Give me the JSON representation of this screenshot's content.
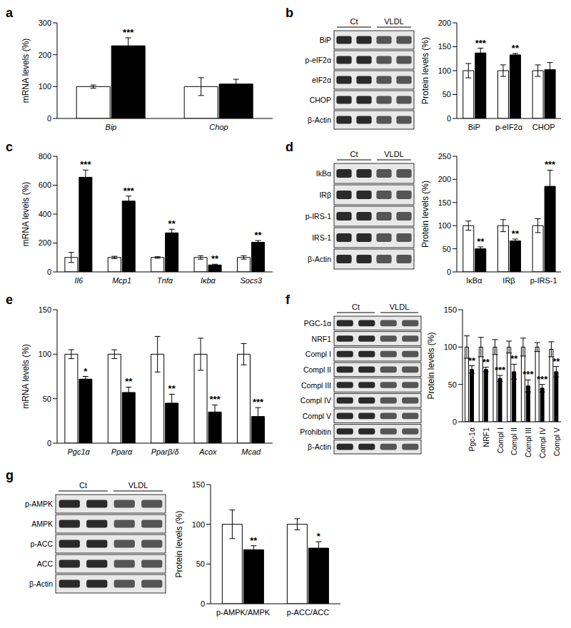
{
  "chart_data": [
    {
      "type": "bar",
      "title": "a",
      "y_label": "mRNA levels (%)",
      "categories": [
        "Bip",
        "Chop"
      ],
      "ylim": [
        0,
        300
      ],
      "yticks": [
        0,
        100,
        200,
        300
      ],
      "series": [
        {
          "color": "#ffffff",
          "values": [
            100,
            100
          ],
          "errors": [
            5,
            28
          ],
          "annotations": [
            null,
            null
          ]
        },
        {
          "color": "#000000",
          "values": [
            228,
            108
          ],
          "errors": [
            25,
            15
          ],
          "annotations": [
            "***",
            null
          ]
        }
      ]
    },
    {
      "type": "bar",
      "title": "b",
      "y_label": "Protein levels (%)",
      "categories": [
        "BiP",
        "p-eIF2α",
        "CHOP"
      ],
      "ylim": [
        0,
        200
      ],
      "yticks": [
        0,
        50,
        100,
        150,
        200
      ],
      "series": [
        {
          "color": "#ffffff",
          "values": [
            100,
            100,
            100
          ],
          "errors": [
            15,
            12,
            12
          ],
          "annotations": [
            null,
            null,
            null
          ]
        },
        {
          "color": "#000000",
          "values": [
            137,
            133,
            102
          ],
          "errors": [
            10,
            3,
            15
          ],
          "annotations": [
            "***",
            "**",
            null
          ]
        }
      ]
    },
    {
      "type": "bar",
      "title": "c",
      "y_label": "mRNA levels (%)",
      "categories": [
        "Il6",
        "Mcp1",
        "Tnfα",
        "Iκbα",
        "Socs3"
      ],
      "ylim": [
        0,
        800
      ],
      "yticks": [
        0,
        200,
        400,
        600,
        800
      ],
      "series": [
        {
          "color": "#ffffff",
          "values": [
            100,
            100,
            100,
            100,
            100
          ],
          "errors": [
            35,
            8,
            5,
            12,
            12
          ],
          "annotations": [
            null,
            null,
            null,
            null,
            null
          ]
        },
        {
          "color": "#000000",
          "values": [
            655,
            490,
            270,
            48,
            205
          ],
          "errors": [
            50,
            35,
            25,
            5,
            12
          ],
          "annotations": [
            "***",
            "***",
            "**",
            "**",
            "**"
          ]
        }
      ]
    },
    {
      "type": "bar",
      "title": "d",
      "y_label": "Protein levels (%)",
      "categories": [
        "IκBα",
        "IRβ",
        "p-IRS-1"
      ],
      "ylim": [
        0,
        250
      ],
      "yticks": [
        0,
        50,
        100,
        150,
        200,
        250
      ],
      "series": [
        {
          "color": "#ffffff",
          "values": [
            100,
            100,
            100
          ],
          "errors": [
            10,
            13,
            15
          ],
          "annotations": [
            null,
            null,
            null
          ]
        },
        {
          "color": "#000000",
          "values": [
            50,
            67,
            185
          ],
          "errors": [
            4,
            4,
            35
          ],
          "annotations": [
            "**",
            "**",
            "***"
          ]
        }
      ]
    },
    {
      "type": "bar",
      "title": "e",
      "y_label": "mRNA levels (%)",
      "categories": [
        "Pgc1α",
        "Pparα",
        "Pparβ/δ",
        "Acox",
        "Mcad"
      ],
      "ylim": [
        0,
        150
      ],
      "yticks": [
        0,
        50,
        100,
        150
      ],
      "series": [
        {
          "color": "#ffffff",
          "values": [
            100,
            100,
            100,
            100,
            100
          ],
          "errors": [
            5,
            5,
            20,
            18,
            12
          ],
          "annotations": [
            null,
            null,
            null,
            null,
            null
          ]
        },
        {
          "color": "#000000",
          "values": [
            72,
            57,
            45,
            35,
            30
          ],
          "errors": [
            3,
            6,
            10,
            8,
            10
          ],
          "annotations": [
            "*",
            "**",
            "**",
            "***",
            "***"
          ]
        }
      ]
    },
    {
      "type": "bar",
      "title": "f",
      "y_label": "Protein levels (%)",
      "categories": [
        "Pgc-1α",
        "NRF1",
        "Compl I",
        "Compl II",
        "Compl III",
        "Compl IV",
        "Compl V"
      ],
      "ylim": [
        0,
        150
      ],
      "yticks": [
        0,
        50,
        100,
        150
      ],
      "series": [
        {
          "color": "#ffffff",
          "values": [
            100,
            100,
            100,
            100,
            100,
            100,
            97
          ],
          "errors": [
            15,
            13,
            10,
            8,
            12,
            6,
            10
          ],
          "annotations": [
            null,
            null,
            null,
            null,
            null,
            null,
            null
          ]
        },
        {
          "color": "#000000",
          "values": [
            70,
            70,
            58,
            67,
            48,
            45,
            67
          ],
          "errors": [
            5,
            3,
            4,
            10,
            8,
            5,
            7
          ],
          "annotations": [
            "**",
            "**",
            "***",
            "**",
            "***",
            "***",
            "**"
          ]
        }
      ]
    },
    {
      "type": "bar",
      "title": "g",
      "y_label": "Protein levels (%)",
      "categories": [
        "p-AMPK/AMPK",
        "p-ACC/ACC"
      ],
      "ylim": [
        0,
        150
      ],
      "yticks": [
        0,
        50,
        100,
        150
      ],
      "series": [
        {
          "color": "#ffffff",
          "values": [
            100,
            100
          ],
          "errors": [
            18,
            7
          ],
          "annotations": [
            null,
            null
          ]
        },
        {
          "color": "#000000",
          "values": [
            68,
            70
          ],
          "errors": [
            5,
            8
          ],
          "annotations": [
            "**",
            "*"
          ]
        }
      ]
    }
  ],
  "blots": [
    {
      "groups": [
        "Ct",
        "VLDL"
      ],
      "rows": [
        "BiP",
        "p-eIF2α",
        "eIF2α",
        "CHOP",
        "β-Actin"
      ]
    },
    {
      "groups": [
        "Ct",
        "VLDL"
      ],
      "rows": [
        "IkBα",
        "IRβ",
        "p-IRS-1",
        "IRS-1",
        "β-Actin"
      ]
    },
    {
      "groups": [
        "Ct",
        "VLDL"
      ],
      "rows": [
        "PGC-1α",
        "NRF1",
        "Compl I",
        "Compl II",
        "Compl III",
        "Compl IV",
        "Compl V",
        "Prohibitin",
        "β-Actin"
      ]
    },
    {
      "groups": [
        "Ct",
        "VLDL"
      ],
      "rows": [
        "p-AMPK",
        "AMPK",
        "p-ACC",
        "ACC",
        "β-Actin"
      ]
    }
  ]
}
